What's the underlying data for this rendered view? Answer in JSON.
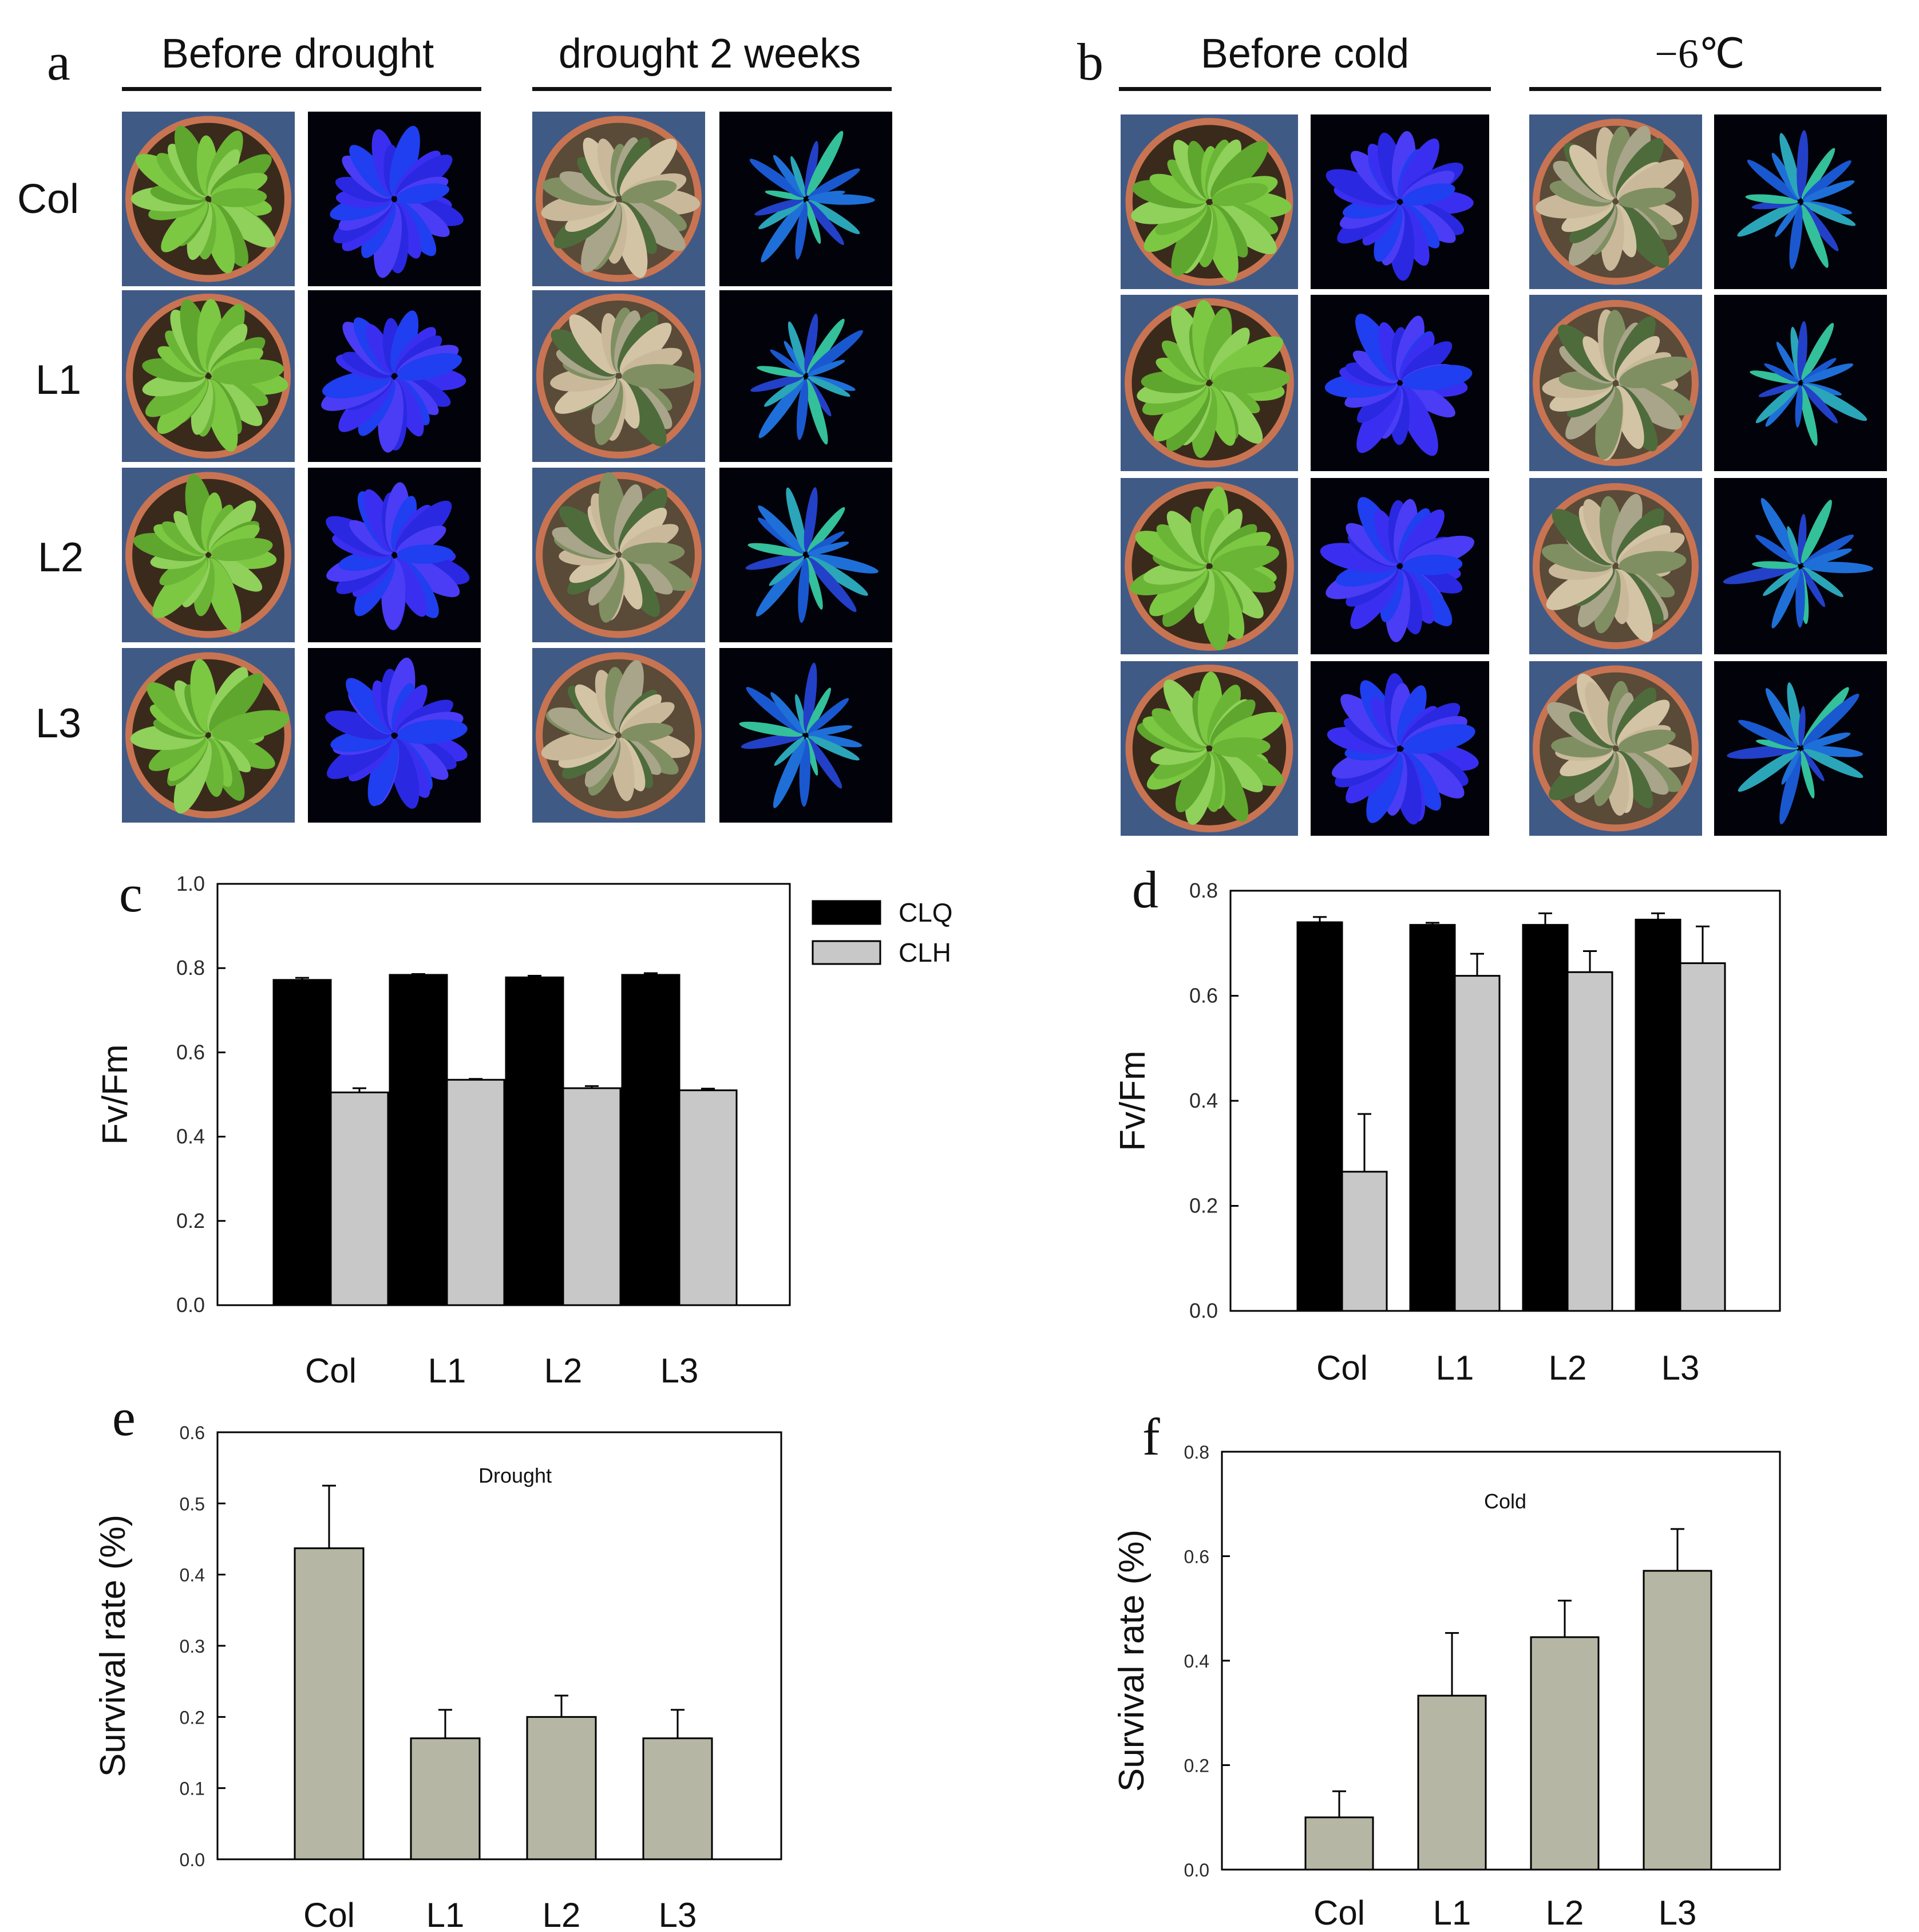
{
  "panels": {
    "a": {
      "letter": "a",
      "conditions": [
        "Before drought",
        "drought 2 weeks"
      ],
      "rows": [
        "Col",
        "L1",
        "L2",
        "L3"
      ]
    },
    "b": {
      "letter": "b",
      "conditions": [
        "Before cold",
        "−6℃"
      ]
    }
  },
  "colors": {
    "clq": "#000000",
    "clh": "#c8c8c8",
    "survival": "#b5b6a4",
    "pot": "#c87452",
    "leaf_healthy": "#6fbe3a",
    "fluor_blue": "#2a2cf0",
    "photo_bg": "#405a86",
    "fluor_bg": "#02020a"
  },
  "chart_data": [
    {
      "panel": "c",
      "type": "bar",
      "categories": [
        "Col",
        "L1",
        "L2",
        "L3"
      ],
      "series": [
        {
          "name": "CLQ",
          "values": [
            0.772,
            0.784,
            0.778,
            0.784
          ],
          "errors": [
            0.005,
            0.002,
            0.004,
            0.004
          ]
        },
        {
          "name": "CLH",
          "values": [
            0.505,
            0.535,
            0.515,
            0.51
          ],
          "errors": [
            0.01,
            0.002,
            0.005,
            0.004
          ]
        }
      ],
      "ylabel": "Fv/Fm",
      "ylim": [
        0,
        1.0
      ],
      "yticks": [
        "0.0",
        "0.2",
        "0.4",
        "0.6",
        "0.8",
        "1.0"
      ],
      "legend": "top-right outside"
    },
    {
      "panel": "d",
      "type": "bar",
      "categories": [
        "Col",
        "L1",
        "L2",
        "L3"
      ],
      "series": [
        {
          "name": "CLQ",
          "values": [
            0.74,
            0.735,
            0.735,
            0.745
          ],
          "errors": [
            0.01,
            0.004,
            0.022,
            0.012
          ]
        },
        {
          "name": "CLH",
          "values": [
            0.265,
            0.638,
            0.645,
            0.662
          ],
          "errors": [
            0.11,
            0.042,
            0.04,
            0.07
          ]
        }
      ],
      "ylabel": "Fv/Fm",
      "ylim": [
        0,
        0.8
      ],
      "yticks": [
        "0.0",
        "0.2",
        "0.4",
        "0.6",
        "0.8"
      ]
    },
    {
      "panel": "e",
      "type": "bar",
      "annotation": "Drought",
      "categories": [
        "Col",
        "L1",
        "L2",
        "L3"
      ],
      "series": [
        {
          "name": "",
          "values": [
            0.437,
            0.17,
            0.2,
            0.17
          ],
          "errors": [
            0.088,
            0.04,
            0.03,
            0.04
          ]
        }
      ],
      "ylabel": "Survival rate (%)",
      "ylim": [
        0,
        0.6
      ],
      "yticks": [
        "0.0",
        "0.1",
        "0.2",
        "0.3",
        "0.4",
        "0.5",
        "0.6"
      ]
    },
    {
      "panel": "f",
      "type": "bar",
      "annotation": "Cold",
      "categories": [
        "Col",
        "L1",
        "L2",
        "L3"
      ],
      "series": [
        {
          "name": "",
          "values": [
            0.1,
            0.333,
            0.445,
            0.572
          ],
          "errors": [
            0.05,
            0.12,
            0.07,
            0.08
          ]
        }
      ],
      "ylabel": "Survival rate (%)",
      "ylim": [
        0,
        0.8
      ],
      "yticks": [
        "0.0",
        "0.2",
        "0.4",
        "0.6",
        "0.8"
      ]
    }
  ]
}
